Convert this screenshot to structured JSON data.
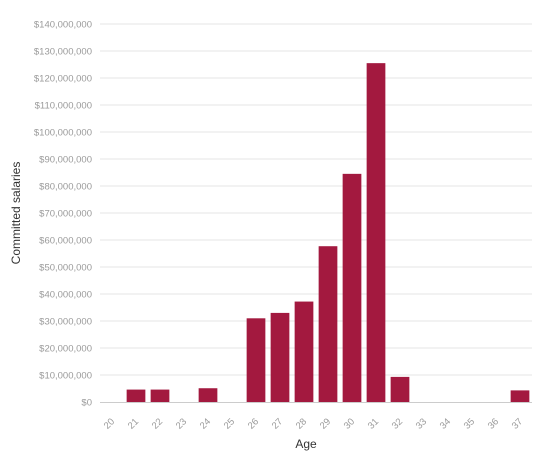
{
  "chart_data": {
    "type": "bar",
    "categories": [
      "20",
      "21",
      "22",
      "23",
      "24",
      "25",
      "26",
      "27",
      "28",
      "29",
      "30",
      "31",
      "32",
      "33",
      "34",
      "35",
      "36",
      "37"
    ],
    "values": [
      0,
      4600000,
      4600000,
      0,
      5100000,
      0,
      31000000,
      33000000,
      37200000,
      57700000,
      84500000,
      125500000,
      9300000,
      0,
      0,
      0,
      0,
      4300000
    ],
    "title": "",
    "xlabel": "Age",
    "ylabel": "Committed salaries",
    "ylim": [
      0,
      140000000
    ],
    "yticks": [
      0,
      10000000,
      20000000,
      30000000,
      40000000,
      50000000,
      60000000,
      70000000,
      80000000,
      90000000,
      100000000,
      110000000,
      120000000,
      130000000,
      140000000
    ],
    "ytick_labels": [
      "$0",
      "$10,000,000",
      "$20,000,000",
      "$30,000,000",
      "$40,000,000",
      "$50,000,000",
      "$60,000,000",
      "$70,000,000",
      "$80,000,000",
      "$90,000,000",
      "$100,000,000",
      "$110,000,000",
      "$120,000,000",
      "$130,000,000",
      "$140,000,000"
    ],
    "grid": true,
    "legend": "none",
    "bar_color": "#a3193f"
  }
}
